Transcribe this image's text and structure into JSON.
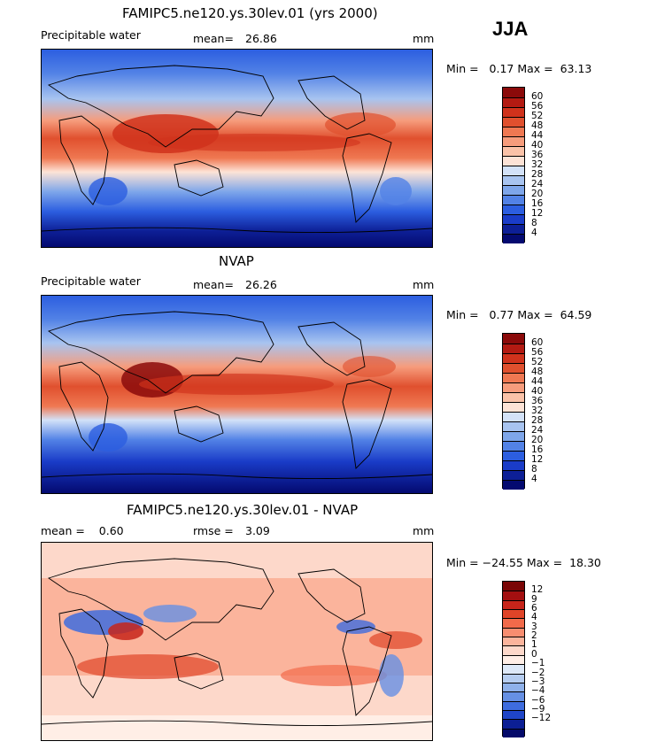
{
  "season": "JJA",
  "panels": [
    {
      "title": "FAMIPC5.ne120.ys.30lev.01 (yrs 2000)",
      "left_label": "Precipitable water",
      "stat_label": "mean=",
      "stat_value": "26.86",
      "unit": "mm",
      "minmax": "Min =   0.17 Max =  63.13",
      "colorbar_labels": [
        "60",
        "56",
        "52",
        "48",
        "44",
        "40",
        "36",
        "32",
        "28",
        "24",
        "20",
        "16",
        "12",
        "8",
        "4"
      ]
    },
    {
      "title": "NVAP",
      "left_label": "Precipitable water",
      "stat_label": "mean=",
      "stat_value": "26.26",
      "unit": "mm",
      "minmax": "Min =   0.77 Max =  64.59",
      "colorbar_labels": [
        "60",
        "56",
        "52",
        "48",
        "44",
        "40",
        "36",
        "32",
        "28",
        "24",
        "20",
        "16",
        "12",
        "8",
        "4"
      ]
    },
    {
      "title": "FAMIPC5.ne120.ys.30lev.01 - NVAP",
      "left_label": "mean =    0.60",
      "stat_label": "rmse =",
      "stat_value": "3.09",
      "unit": "mm",
      "minmax": "Min = −24.55 Max =  18.30",
      "colorbar_labels": [
        "12",
        "9",
        "6",
        "4",
        "3",
        "2",
        "1",
        "0",
        "−1",
        "−2",
        "−3",
        "−4",
        "−6",
        "−9",
        "−12"
      ]
    }
  ],
  "colors": {
    "pw_scale": [
      "#8b0a0a",
      "#b31a12",
      "#d0321c",
      "#e0502e",
      "#ef7852",
      "#f69c7c",
      "#fac2a8",
      "#fde3d6",
      "#d3e2f8",
      "#a8c4f0",
      "#7ea6ea",
      "#5282e6",
      "#2c5ee0",
      "#1a3cc8",
      "#0d1f96",
      "#040a70"
    ],
    "diff_scale": [
      "#7a0606",
      "#a30f10",
      "#c7241a",
      "#e04428",
      "#f26a4a",
      "#f78d70",
      "#fbb49c",
      "#fdd8ca",
      "#ffeeE6",
      "#dde8f7",
      "#b6cdf0",
      "#8fb1ea",
      "#6690e4",
      "#3e6cde",
      "#1f45c8",
      "#0c1f94",
      "#040a6a"
    ]
  }
}
